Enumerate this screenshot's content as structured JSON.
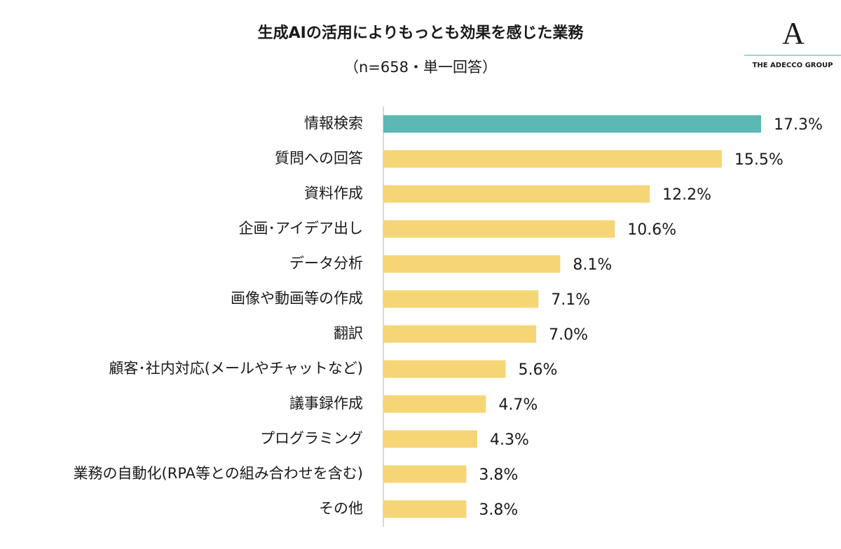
{
  "chart_data": {
    "type": "bar",
    "orientation": "horizontal",
    "title": "生成AIの活用によりもっとも効果を感じた業務",
    "subtitle": "（n=658・単一回答）",
    "categories": [
      "情報検索",
      "質問への回答",
      "資料作成",
      "企画･アイデア出し",
      "データ分析",
      "画像や動画等の作成",
      "翻訳",
      "顧客･社内対応(メールやチャットなど)",
      "議事録作成",
      "プログラミング",
      "業務の自動化(RPA等との組み合わせを含む)",
      "その他"
    ],
    "values": [
      17.3,
      15.5,
      12.2,
      10.6,
      8.1,
      7.1,
      7.0,
      5.6,
      4.7,
      4.3,
      3.8,
      3.8
    ],
    "value_labels": [
      "17.3%",
      "15.5%",
      "12.2%",
      "10.6%",
      "8.1%",
      "7.1%",
      "7.0%",
      "5.6%",
      "4.7%",
      "4.3%",
      "3.8%",
      "3.8%"
    ],
    "colors": [
      "#5cb8b2",
      "#f5d575",
      "#f5d575",
      "#f5d575",
      "#f5d575",
      "#f5d575",
      "#f5d575",
      "#f5d575",
      "#f5d575",
      "#f5d575",
      "#f5d575",
      "#f5d575"
    ]
  },
  "logo": {
    "mark": "A",
    "text": "THE ADECCO GROUP"
  }
}
